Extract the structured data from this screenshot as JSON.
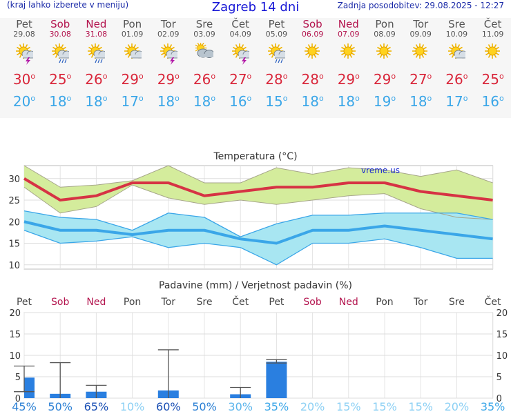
{
  "header": {
    "hint": "(kraj lahko izberete v meniju)",
    "title": "Zagreb 14 dni",
    "updated": "Zadnja posodobitev: 29.08.2025 - 12:27"
  },
  "days": [
    {
      "name": "Pet",
      "date": "29.08",
      "weekend": false,
      "icon": "sun-cloud-thunder-icon",
      "tmax": "30",
      "tmin": "20",
      "precip_pct": "45%",
      "pct_color": "#2a7fd4"
    },
    {
      "name": "Sob",
      "date": "30.08",
      "weekend": true,
      "icon": "sun-cloud-rain-icon",
      "tmax": "25",
      "tmin": "18",
      "precip_pct": "50%",
      "pct_color": "#2a7fd4"
    },
    {
      "name": "Ned",
      "date": "31.08",
      "weekend": true,
      "icon": "sun-cloud-rain-icon",
      "tmax": "26",
      "tmin": "18",
      "precip_pct": "65%",
      "pct_color": "#1a4fb4"
    },
    {
      "name": "Pon",
      "date": "01.09",
      "weekend": false,
      "icon": "sun-cloud-icon",
      "tmax": "29",
      "tmin": "17",
      "precip_pct": "10%",
      "pct_color": "#8cd0f4"
    },
    {
      "name": "Tor",
      "date": "02.09",
      "weekend": false,
      "icon": "sun-cloud-thunder-icon",
      "tmax": "29",
      "tmin": "18",
      "precip_pct": "60%",
      "pct_color": "#1a4fb4"
    },
    {
      "name": "Sre",
      "date": "03.09",
      "weekend": false,
      "icon": "cloud-sun-icon",
      "tmax": "26",
      "tmin": "18",
      "precip_pct": "50%",
      "pct_color": "#2a7fd4"
    },
    {
      "name": "Čet",
      "date": "04.09",
      "weekend": false,
      "icon": "sun-cloud-thunder-icon",
      "tmax": "27",
      "tmin": "16",
      "precip_pct": "30%",
      "pct_color": "#5ab4ec"
    },
    {
      "name": "Pet",
      "date": "05.09",
      "weekend": false,
      "icon": "sun-cloud-rain-icon",
      "tmax": "28",
      "tmin": "15",
      "precip_pct": "35%",
      "pct_color": "#3aa6e8"
    },
    {
      "name": "Sob",
      "date": "06.09",
      "weekend": true,
      "icon": "sun-icon",
      "tmax": "28",
      "tmin": "18",
      "precip_pct": "20%",
      "pct_color": "#8cd0f4"
    },
    {
      "name": "Ned",
      "date": "07.09",
      "weekend": true,
      "icon": "sun-icon",
      "tmax": "29",
      "tmin": "18",
      "precip_pct": "15%",
      "pct_color": "#8cd0f4"
    },
    {
      "name": "Pon",
      "date": "08.09",
      "weekend": false,
      "icon": "sun-icon",
      "tmax": "29",
      "tmin": "19",
      "precip_pct": "15%",
      "pct_color": "#8cd0f4"
    },
    {
      "name": "Tor",
      "date": "09.09",
      "weekend": false,
      "icon": "sun-icon",
      "tmax": "27",
      "tmin": "18",
      "precip_pct": "15%",
      "pct_color": "#8cd0f4"
    },
    {
      "name": "Sre",
      "date": "10.09",
      "weekend": false,
      "icon": "sun-cloud-icon",
      "tmax": "26",
      "tmin": "17",
      "precip_pct": "20%",
      "pct_color": "#8cd0f4"
    },
    {
      "name": "Čet",
      "date": "11.09",
      "weekend": false,
      "icon": "sun-icon",
      "tmax": "25",
      "tmin": "16",
      "precip_pct": "35%",
      "pct_color": "#3aa6e8"
    }
  ],
  "degree_mark": "o",
  "chart_data": [
    {
      "type": "line",
      "title": "Temperatura (°C)",
      "watermark": "vreme.us",
      "ylim": [
        9,
        33
      ],
      "yticks": [
        "10",
        "15",
        "20",
        "25",
        "30"
      ],
      "grid": true,
      "series": [
        {
          "values": [
            30,
            25,
            26,
            29,
            29,
            26,
            27,
            28,
            28,
            29,
            29,
            27,
            26,
            25
          ],
          "color": "#d63344"
        },
        {
          "values": [
            33,
            28,
            28.5,
            29.5,
            33,
            29,
            29,
            32.5,
            31,
            32.5,
            32,
            30.5,
            32,
            29
          ],
          "color": "#a6a68a"
        },
        {
          "values": [
            28,
            22,
            23.5,
            28.5,
            25.5,
            24,
            25,
            24,
            25,
            26,
            26.5,
            23,
            21,
            20.5
          ],
          "color": "#a6a68a"
        },
        {
          "values": [
            20,
            18,
            18,
            17,
            18,
            18,
            16,
            15,
            18,
            18,
            19,
            18,
            17,
            16
          ],
          "color": "#3aa6e8"
        },
        {
          "values": [
            22.5,
            21,
            20.5,
            18,
            22,
            21,
            16.5,
            19.5,
            21.5,
            21.5,
            22,
            22,
            22,
            20.5
          ],
          "color": "#3aa6e8"
        },
        {
          "values": [
            18,
            15,
            15.5,
            16.5,
            14,
            15,
            14,
            10,
            15,
            15,
            16,
            14,
            11.5,
            11.5
          ],
          "color": "#3aa6e8"
        }
      ],
      "fill_colors": {
        "max_band": "#d4ec9c",
        "min_band": "#a8e6f2"
      }
    },
    {
      "type": "bar",
      "title": "Padavine (mm) / Verjetnost padavin (%)",
      "ylim": [
        0,
        20
      ],
      "yticks": [
        "0",
        "5",
        "10",
        "15",
        "20"
      ],
      "grid": true,
      "values": [
        4.8,
        1.0,
        1.5,
        0,
        1.8,
        0,
        0.9,
        8.5,
        0,
        0,
        0,
        0,
        0,
        0
      ],
      "error_high": [
        7.5,
        8.3,
        3.0,
        0,
        11.3,
        0,
        2.5,
        9.0,
        0,
        0,
        0,
        0,
        0,
        0
      ],
      "error_low": [
        1.5,
        0,
        0,
        0,
        0,
        0,
        0,
        8.2,
        0,
        0,
        0,
        0,
        0,
        0
      ],
      "bar_color": "#2a7fe0"
    }
  ]
}
